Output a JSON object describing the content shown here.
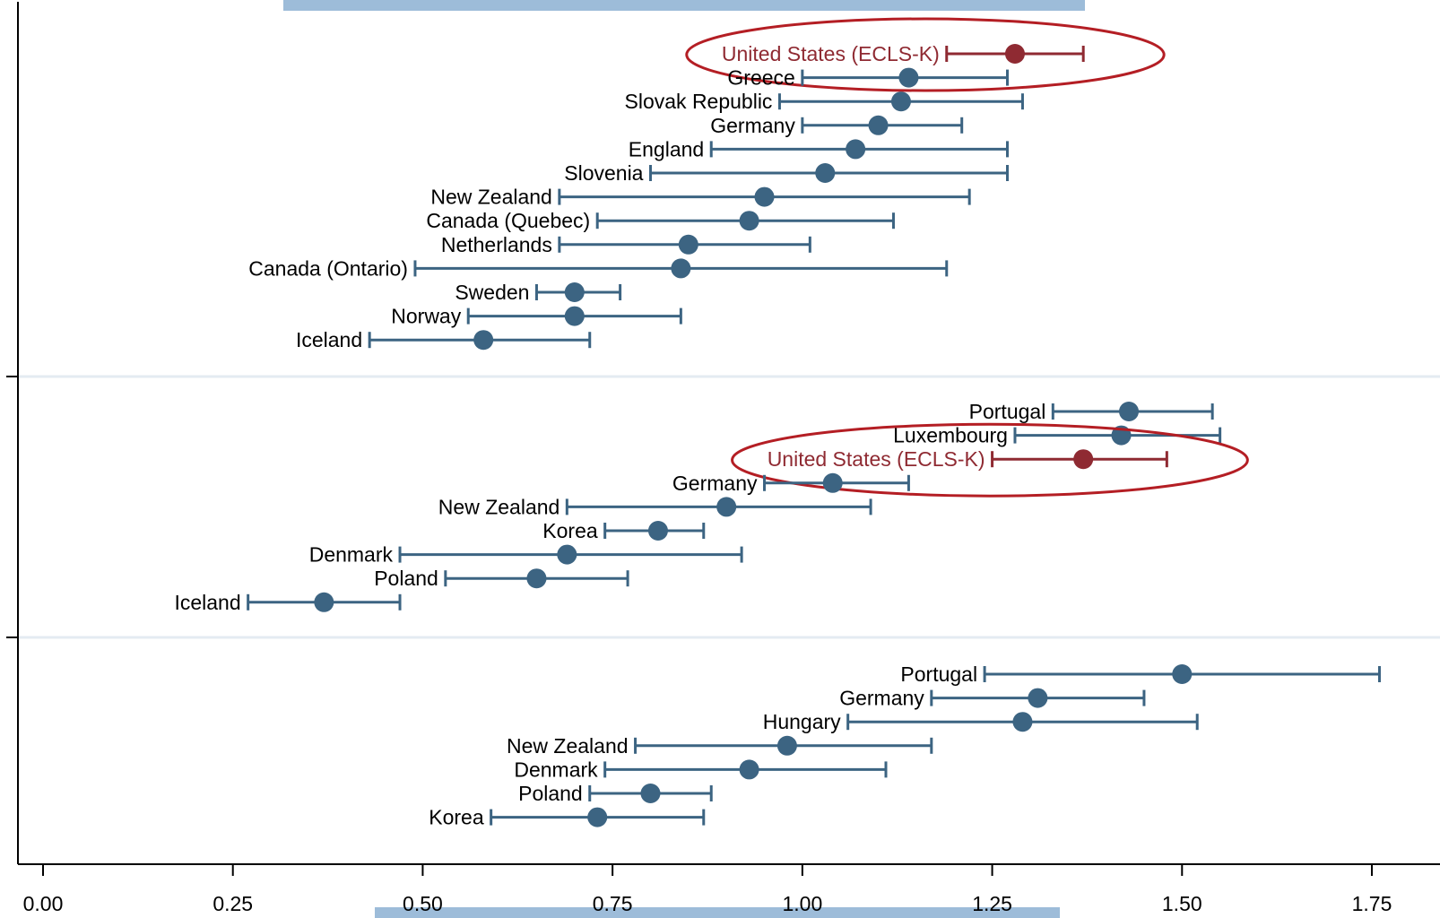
{
  "chart_data": {
    "type": "dot-whisker",
    "xlim": [
      -0.07,
      1.85
    ],
    "x_ticks": [
      0.0,
      0.25,
      0.5,
      0.75,
      1.0,
      1.25,
      1.5,
      1.75
    ],
    "x_tick_labels": [
      "0.00",
      "0.25",
      "0.50",
      "0.75",
      "1.00",
      "1.25",
      "1.50",
      "1.75"
    ],
    "panels": [
      {
        "points": [
          {
            "label": "United States (ECLS-K)",
            "value": 1.28,
            "lo": 1.19,
            "hi": 1.37,
            "highlight": true
          },
          {
            "label": "Greece",
            "value": 1.14,
            "lo": 1.0,
            "hi": 1.27
          },
          {
            "label": "Slovak Republic",
            "value": 1.13,
            "lo": 0.97,
            "hi": 1.29
          },
          {
            "label": "Germany",
            "value": 1.1,
            "lo": 1.0,
            "hi": 1.21
          },
          {
            "label": "England",
            "value": 1.07,
            "lo": 0.88,
            "hi": 1.27
          },
          {
            "label": "Slovenia",
            "value": 1.03,
            "lo": 0.8,
            "hi": 1.27
          },
          {
            "label": "New Zealand",
            "value": 0.95,
            "lo": 0.68,
            "hi": 1.22
          },
          {
            "label": "Canada (Quebec)",
            "value": 0.93,
            "lo": 0.73,
            "hi": 1.12
          },
          {
            "label": "Netherlands",
            "value": 0.85,
            "lo": 0.68,
            "hi": 1.01
          },
          {
            "label": "Canada (Ontario)",
            "value": 0.84,
            "lo": 0.49,
            "hi": 1.19
          },
          {
            "label": "Sweden",
            "value": 0.7,
            "lo": 0.65,
            "hi": 0.76
          },
          {
            "label": "Norway",
            "value": 0.7,
            "lo": 0.56,
            "hi": 0.84
          },
          {
            "label": "Iceland",
            "value": 0.58,
            "lo": 0.43,
            "hi": 0.72
          }
        ]
      },
      {
        "points": [
          {
            "label": "Portugal",
            "value": 1.43,
            "lo": 1.33,
            "hi": 1.54
          },
          {
            "label": "Luxembourg",
            "value": 1.42,
            "lo": 1.28,
            "hi": 1.55
          },
          {
            "label": "United States (ECLS-K)",
            "value": 1.37,
            "lo": 1.25,
            "hi": 1.48,
            "highlight": true
          },
          {
            "label": "Germany",
            "value": 1.04,
            "lo": 0.95,
            "hi": 1.14
          },
          {
            "label": "New Zealand",
            "value": 0.9,
            "lo": 0.69,
            "hi": 1.09
          },
          {
            "label": "Korea",
            "value": 0.81,
            "lo": 0.74,
            "hi": 0.87
          },
          {
            "label": "Denmark",
            "value": 0.69,
            "lo": 0.47,
            "hi": 0.92
          },
          {
            "label": "Poland",
            "value": 0.65,
            "lo": 0.53,
            "hi": 0.77
          },
          {
            "label": "Iceland",
            "value": 0.37,
            "lo": 0.27,
            "hi": 0.47
          }
        ]
      },
      {
        "points": [
          {
            "label": "Portugal",
            "value": 1.5,
            "lo": 1.24,
            "hi": 1.76
          },
          {
            "label": "Germany",
            "value": 1.31,
            "lo": 1.17,
            "hi": 1.45
          },
          {
            "label": "Hungary",
            "value": 1.29,
            "lo": 1.06,
            "hi": 1.52
          },
          {
            "label": "New Zealand",
            "value": 0.98,
            "lo": 0.78,
            "hi": 1.17
          },
          {
            "label": "Denmark",
            "value": 0.93,
            "lo": 0.74,
            "hi": 1.11
          },
          {
            "label": "Poland",
            "value": 0.8,
            "lo": 0.72,
            "hi": 0.88
          },
          {
            "label": "Korea",
            "value": 0.73,
            "lo": 0.59,
            "hi": 0.87
          }
        ]
      }
    ],
    "colors": {
      "series": "#3c6482",
      "highlight": "#8f2a32",
      "ellipse": "#b41e24",
      "band": "#9dbcd9",
      "axis": "#000000",
      "separator": "#e4ebf2"
    },
    "grid": false,
    "legend": "none"
  }
}
